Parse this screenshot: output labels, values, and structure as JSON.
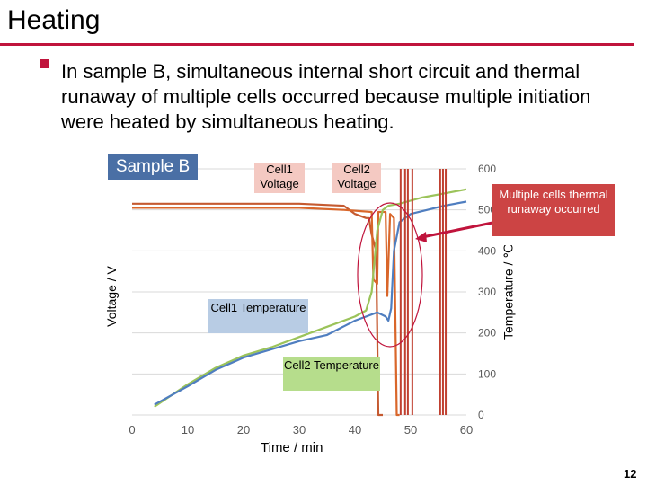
{
  "slide": {
    "title": "Heating",
    "bullet": "In sample B, simultaneous internal short circuit and thermal runaway of multiple cells occurred because multiple initiation were heated by simultaneous heating.",
    "page_number": "12"
  },
  "colors": {
    "accent": "#c0143c",
    "cell1_voltage": "#d9662a",
    "cell2_voltage": "#c55a30",
    "cell1_temperature": "#4f7ec0",
    "cell2_temperature": "#9bc35a",
    "runaway_spikes": "#c04030"
  },
  "chart_data": {
    "type": "line",
    "sample_label": "Sample B",
    "xlabel": "Time / min",
    "ylabel_left": "Voltage / V",
    "ylabel_right": "Temperature / ℃",
    "xlim": [
      0,
      60
    ],
    "x_ticks": [
      "0",
      "10",
      "20",
      "30",
      "40",
      "50",
      "60"
    ],
    "y2lim": [
      0,
      600
    ],
    "y2_ticks": [
      "0",
      "100",
      "200",
      "300",
      "400",
      "500",
      "600"
    ],
    "annotations": {
      "cell1_voltage": "Cell1 Voltage",
      "cell2_voltage": "Cell2 Voltage",
      "cell1_temperature": "Cell1 Temperature",
      "cell2_temperature": "Cell2 Temperature",
      "multiple_cells": "Multiple cells thermal runaway occurred"
    },
    "series": [
      {
        "name": "Cell1 Temperature",
        "axis": "right",
        "x": [
          4,
          10,
          15,
          20,
          25,
          30,
          35,
          40,
          44,
          45.5,
          46,
          46.5,
          47,
          48,
          50,
          53,
          56,
          60
        ],
        "y": [
          25,
          70,
          110,
          140,
          160,
          180,
          195,
          230,
          250,
          240,
          230,
          260,
          400,
          470,
          490,
          500,
          510,
          520
        ]
      },
      {
        "name": "Cell2 Temperature",
        "axis": "right",
        "x": [
          4,
          10,
          15,
          20,
          25,
          30,
          35,
          40,
          42,
          43,
          44,
          45,
          46,
          48,
          52,
          56,
          60
        ],
        "y": [
          20,
          75,
          115,
          145,
          165,
          190,
          215,
          240,
          255,
          300,
          450,
          500,
          510,
          515,
          530,
          540,
          550
        ]
      },
      {
        "name": "Cell1 Voltage",
        "axis": "right",
        "x": [
          0,
          10,
          20,
          30,
          38,
          43,
          43.3,
          44,
          44.2,
          45.5,
          45.8,
          46.3,
          47,
          47.5,
          48
        ],
        "y": [
          505,
          505,
          505,
          505,
          500,
          495,
          330,
          320,
          495,
          495,
          290,
          490,
          480,
          0,
          0
        ]
      },
      {
        "name": "Cell2 Voltage",
        "axis": "right",
        "x": [
          0,
          10,
          20,
          30,
          38,
          40,
          42,
          42.5,
          43,
          43.8,
          44.2,
          45
        ],
        "y": [
          515,
          515,
          515,
          515,
          510,
          490,
          480,
          480,
          440,
          400,
          0,
          0
        ]
      }
    ]
  }
}
